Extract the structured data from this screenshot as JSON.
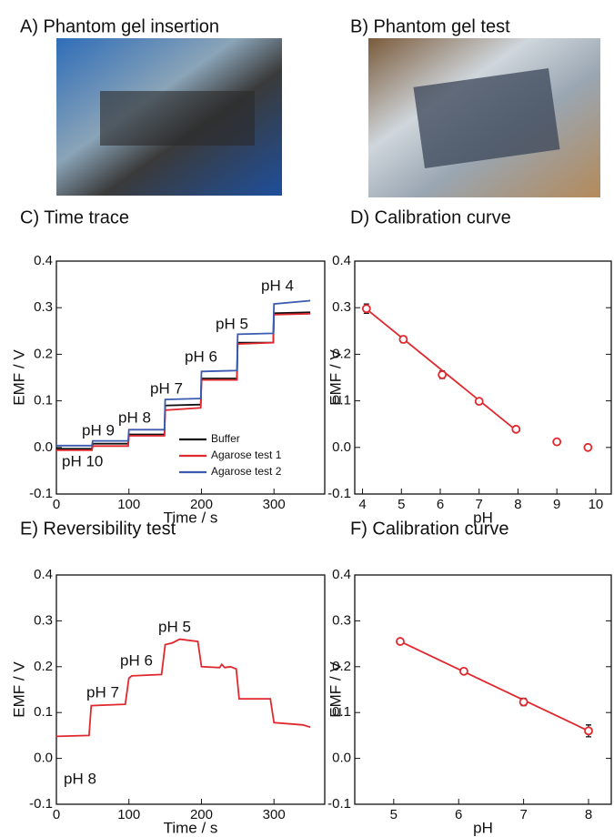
{
  "photos": [
    {
      "title": "A) Phantom gel insertion"
    },
    {
      "title": "B) Phantom gel test"
    }
  ],
  "chart_data": [
    {
      "type": "line",
      "title": "C) Time trace",
      "xlabel": "Time / s",
      "ylabel": "EMF / V",
      "xlim": [
        0,
        370
      ],
      "ylim": [
        -0.1,
        0.4
      ],
      "xticks": [
        0,
        100,
        200,
        300
      ],
      "yticks": [
        -0.1,
        {
          "value": 0,
          "label": "0.0"
        },
        0.1,
        0.2,
        0.3,
        0.4
      ],
      "legend": "lower right",
      "series": [
        {
          "name": "Buffer",
          "color": "#111111",
          "x": [
            0,
            49,
            50,
            99,
            100,
            149,
            150,
            199,
            200,
            249,
            250,
            299,
            300,
            350
          ],
          "values": [
            -0.003,
            -0.003,
            0.008,
            0.008,
            0.028,
            0.028,
            0.09,
            0.092,
            0.148,
            0.148,
            0.225,
            0.225,
            0.288,
            0.29
          ]
        },
        {
          "name": "Agarose test 1",
          "color": "#e0282e",
          "x": [
            0,
            49,
            50,
            99,
            100,
            149,
            150,
            199,
            200,
            249,
            250,
            299,
            300,
            350
          ],
          "values": [
            -0.006,
            -0.006,
            0.003,
            0.003,
            0.025,
            0.025,
            0.08,
            0.085,
            0.145,
            0.145,
            0.222,
            0.225,
            0.285,
            0.287
          ]
        },
        {
          "name": "Agarose test 2",
          "color": "#3b5bb0",
          "x": [
            0,
            49,
            50,
            99,
            100,
            149,
            150,
            199,
            200,
            249,
            250,
            299,
            300,
            350
          ],
          "values": [
            0.004,
            0.004,
            0.014,
            0.014,
            0.038,
            0.038,
            0.103,
            0.105,
            0.163,
            0.165,
            0.243,
            0.245,
            0.308,
            0.315
          ]
        }
      ],
      "annotations": [
        "pH 4",
        "pH 5",
        "pH 6",
        "pH 7",
        "pH 8",
        "pH 9",
        "pH 10"
      ]
    },
    {
      "type": "scatter",
      "title": "D) Calibration curve",
      "xlabel": "pH",
      "ylabel": "EMF / V",
      "xlim": [
        3.8,
        10.4
      ],
      "ylim": [
        -0.1,
        0.4
      ],
      "xticks": [
        4,
        5,
        6,
        7,
        8,
        9,
        10
      ],
      "yticks": [
        -0.1,
        {
          "value": 0,
          "label": "0.0"
        },
        0.1,
        0.2,
        0.3,
        0.4
      ],
      "series": [
        {
          "color": "#e0282e",
          "style": "line",
          "x": [
            4.1,
            7.95
          ],
          "values": [
            0.297,
            0.037
          ]
        },
        {
          "color": "#e0282e",
          "style": "marker",
          "x": [
            4.1,
            5.05,
            6.05,
            7.0,
            7.95,
            9.0,
            9.8
          ],
          "values": [
            0.298,
            0.232,
            0.156,
            0.099,
            0.039,
            0.012,
            0.0
          ],
          "errors": [
            0.01,
            0.007,
            0.008,
            0.005,
            0.005,
            0.004,
            0.004
          ]
        }
      ]
    },
    {
      "type": "line",
      "title": "E) Reversibility test",
      "xlabel": "Time / s",
      "ylabel": "EMF / V",
      "xlim": [
        0,
        370
      ],
      "ylim": [
        -0.1,
        0.4
      ],
      "xticks": [
        0,
        100,
        200,
        300
      ],
      "yticks": [
        -0.1,
        {
          "value": 0,
          "label": "0.0"
        },
        0.1,
        0.2,
        0.3,
        0.4
      ],
      "series": [
        {
          "color": "#e0282e",
          "x": [
            0,
            45,
            48,
            95,
            100,
            104,
            145,
            150,
            160,
            170,
            195,
            200,
            225,
            228,
            232,
            240,
            248,
            252,
            290,
            295,
            300,
            340,
            350
          ],
          "values": [
            0.048,
            0.05,
            0.115,
            0.118,
            0.175,
            0.18,
            0.183,
            0.248,
            0.252,
            0.26,
            0.255,
            0.2,
            0.198,
            0.205,
            0.198,
            0.2,
            0.195,
            0.13,
            0.13,
            0.13,
            0.078,
            0.073,
            0.068
          ]
        }
      ],
      "annotations": [
        "pH 8",
        "pH 7",
        "pH 6",
        "pH 5"
      ]
    },
    {
      "type": "scatter",
      "title": "F) Calibration curve",
      "xlabel": "pH",
      "ylabel": "EMF / V",
      "xlim": [
        4.4,
        8.35
      ],
      "ylim": [
        -0.1,
        0.4
      ],
      "xticks": [
        5,
        6,
        7,
        8
      ],
      "yticks": [
        -0.1,
        {
          "value": 0,
          "label": "0.0"
        },
        0.1,
        0.2,
        0.3,
        0.4
      ],
      "series": [
        {
          "color": "#e0282e",
          "style": "line",
          "x": [
            5.1,
            8.0
          ],
          "values": [
            0.255,
            0.06
          ]
        },
        {
          "color": "#e0282e",
          "style": "marker",
          "x": [
            5.1,
            6.08,
            7.0,
            8.0
          ],
          "values": [
            0.255,
            0.19,
            0.123,
            0.06
          ],
          "errors": [
            0.005,
            0.006,
            0.008,
            0.013
          ]
        }
      ]
    }
  ]
}
